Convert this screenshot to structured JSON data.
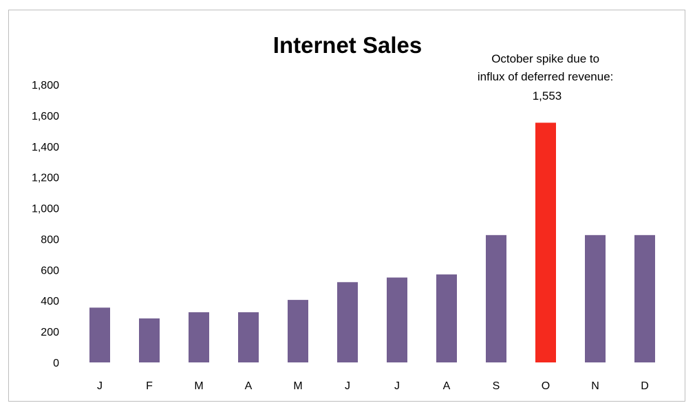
{
  "chart_data": {
    "type": "bar",
    "title": "Internet Sales",
    "xlabel": "",
    "ylabel": "",
    "categories": [
      "J",
      "F",
      "M",
      "A",
      "M",
      "J",
      "J",
      "A",
      "S",
      "O",
      "N",
      "D"
    ],
    "values": [
      355,
      285,
      325,
      325,
      405,
      520,
      550,
      570,
      825,
      1553,
      825,
      825
    ],
    "ylim": [
      0,
      1800
    ],
    "yticks": [
      0,
      200,
      400,
      600,
      800,
      1000,
      1200,
      1400,
      1600,
      1800
    ],
    "ytick_labels": [
      "0",
      "200",
      "400",
      "600",
      "800",
      "1,000",
      "1,200",
      "1,400",
      "1,600",
      "1,800"
    ],
    "grid": false,
    "legend": "none",
    "colors": {
      "default_bar": "#735f91",
      "highlight_bar": "#f52a1e"
    },
    "highlight_index": 9,
    "annotation": {
      "lines": [
        "October spike due to",
        "influx of deferred revenue:",
        "1,553"
      ],
      "target_index": 9
    }
  }
}
